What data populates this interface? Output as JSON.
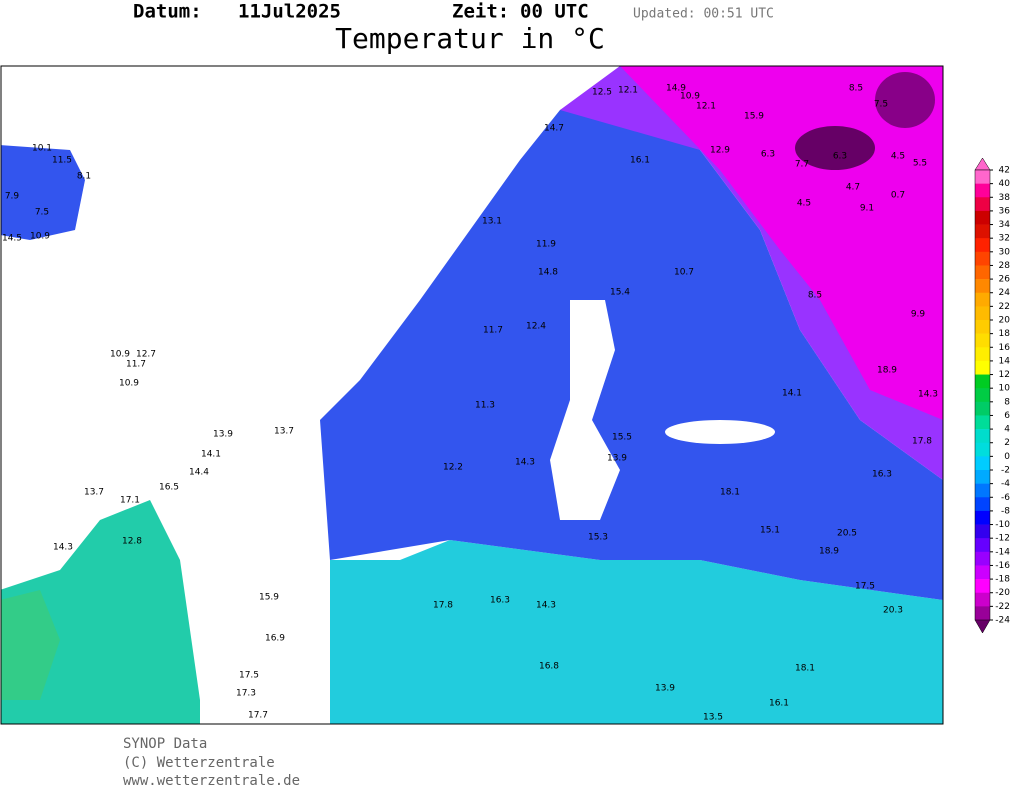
{
  "header": {
    "date_label": "Datum:",
    "date": "11Jul2025",
    "time_label": "Zeit:",
    "time": "00 UTC",
    "updated": "Updated: 00:51 UTC",
    "title": "Temperatur in °C"
  },
  "stations": [
    10.1,
    11.5,
    8.1,
    7.9,
    7.5,
    14.5,
    10.9,
    12.5,
    12.1,
    14.9,
    10.9,
    12.1,
    15.9,
    8.5,
    7.5,
    14.7,
    16.1,
    12.9,
    6.3,
    7.7,
    6.3,
    4.5,
    5.5,
    4.7,
    0.7,
    9.1,
    4.5,
    13.1,
    14.8,
    11.9,
    15.4,
    10.7,
    8.5,
    9.9,
    12.4,
    11.7,
    10.9,
    12.7,
    11.7,
    10.9,
    13.7,
    13.9,
    14.1,
    14.4,
    16.5,
    13.7,
    17.1,
    14.3,
    12.8,
    15.9,
    16.9,
    17.5,
    17.3,
    17.7,
    13.5,
    16.1,
    18.1,
    18.9,
    20.5,
    20.3,
    17.5,
    15.1,
    18.1,
    14.3,
    15.3,
    16.3,
    17.8,
    13.9,
    16.8,
    14.3,
    11.3,
    12.2,
    13.9,
    15.5,
    14.1,
    18.9,
    14.3,
    17.8,
    16.3
  ],
  "colorbar": {
    "ticks": [
      42,
      40,
      38,
      36,
      34,
      32,
      30,
      28,
      26,
      24,
      22,
      20,
      18,
      16,
      14,
      12,
      10,
      8,
      6,
      4,
      2,
      0,
      -2,
      -4,
      -6,
      -8,
      -10,
      -12,
      -14,
      -16,
      -18,
      -20,
      -22,
      -24
    ],
    "colors": [
      "#ff66cc",
      "#ff0099",
      "#ee0044",
      "#cc0000",
      "#dd1100",
      "#ff2200",
      "#ff4400",
      "#ff6600",
      "#ff8800",
      "#ffaa00",
      "#ffbb00",
      "#ffcc00",
      "#ffdd00",
      "#ffee00",
      "#ffff00",
      "#00cc22",
      "#00cc44",
      "#00cc66",
      "#00dd99",
      "#00ddcc",
      "#00dddd",
      "#00ccff",
      "#00aaff",
      "#0077ff",
      "#0044ff",
      "#0000ff",
      "#3300ee",
      "#6600ff",
      "#9900ff",
      "#cc00ff",
      "#ff00ff",
      "#cc00cc",
      "#990099"
    ]
  },
  "footer": {
    "line1": "SYNOP Data",
    "line2": "(C) Wetterzentrale",
    "line3": "www.wetterzentrale.de"
  }
}
